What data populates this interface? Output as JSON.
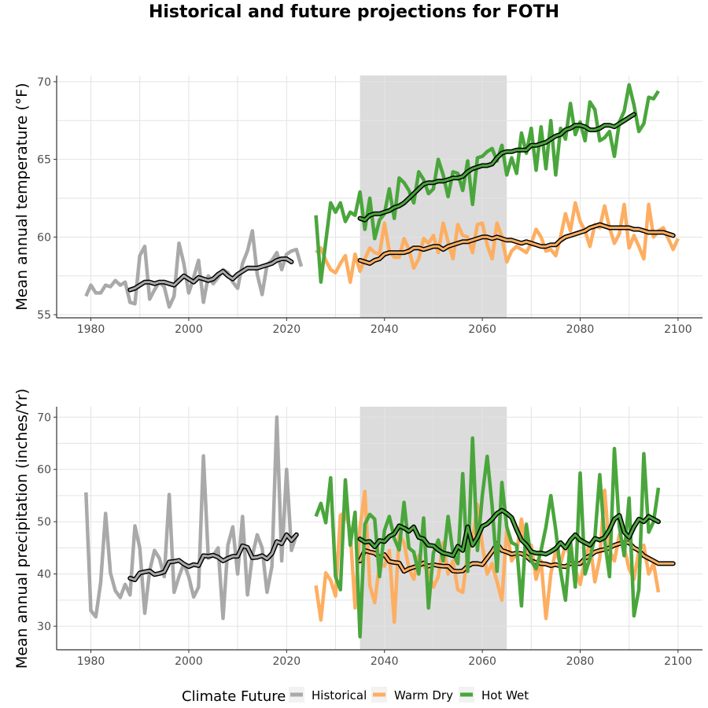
{
  "title": "Historical and future projections for FOTH",
  "colors": {
    "historical": "#a9a9a9",
    "warm_dry": "#fdae61",
    "hot_wet": "#4aa63c",
    "shade": "#dcdcdc",
    "smooth_outline": "#000000"
  },
  "legend": {
    "title": "Climate Future",
    "items": [
      {
        "label": "Historical",
        "color": "#a9a9a9"
      },
      {
        "label": "Warm Dry",
        "color": "#fdae61"
      },
      {
        "label": "Hot Wet",
        "color": "#4aa63c"
      }
    ],
    "position": "bottom"
  },
  "chart_data": [
    {
      "type": "line",
      "ylabel": "Mean annual temperature (°F)",
      "xlabel": "",
      "xlim": [
        1973,
        2105
      ],
      "ylim": [
        54.8,
        70.4
      ],
      "xticks": [
        1980,
        2000,
        2020,
        2040,
        2060,
        2080,
        2100
      ],
      "yticks": [
        55,
        60,
        65,
        70
      ],
      "grid": true,
      "shaded_period": [
        2035,
        2065
      ],
      "series": [
        {
          "name": "Historical",
          "color_key": "historical",
          "x_start": 1979,
          "values": [
            56.2,
            56.9,
            56.4,
            56.4,
            56.9,
            56.8,
            57.2,
            56.9,
            57.1,
            55.8,
            55.7,
            58.8,
            59.4,
            56.0,
            56.6,
            57.1,
            56.8,
            55.5,
            56.2,
            59.6,
            58.3,
            56.4,
            57.4,
            58.5,
            55.8,
            57.5,
            57.0,
            57.4,
            57.9,
            57.7,
            57.1,
            56.7,
            58.3,
            59.1,
            60.4,
            57.6,
            56.3,
            58.2,
            58.5,
            59.0,
            57.9,
            58.9,
            59.1,
            59.2,
            58.1
          ]
        },
        {
          "name": "Historical",
          "color_key": "historical",
          "smoothed": true,
          "x_start": 1988,
          "values": [
            56.6,
            56.7,
            56.9,
            57.1,
            57.1,
            57.0,
            57.1,
            57.1,
            57.0,
            56.9,
            57.2,
            57.5,
            57.3,
            57.1,
            57.4,
            57.3,
            57.2,
            57.3,
            57.6,
            57.8,
            57.5,
            57.3,
            57.6,
            57.8,
            58.0,
            58.0,
            58.0,
            58.1,
            58.2,
            58.3,
            58.5,
            58.6,
            58.6,
            58.4
          ]
        },
        {
          "name": "Warm Dry",
          "color_key": "warm_dry",
          "x_start": 2026,
          "values": [
            59.0,
            59.3,
            58.5,
            57.9,
            57.7,
            58.3,
            58.8,
            57.1,
            58.9,
            57.8,
            58.6,
            59.3,
            59.0,
            58.9,
            60.9,
            59.1,
            58.7,
            58.7,
            59.9,
            59.2,
            58.0,
            58.6,
            59.9,
            59.6,
            60.1,
            59.0,
            60.9,
            59.7,
            58.6,
            60.8,
            60.1,
            60.0,
            59.0,
            60.8,
            60.9,
            59.5,
            58.6,
            60.9,
            60.0,
            58.4,
            59.1,
            59.4,
            59.2,
            59.0,
            59.6,
            60.5,
            60.0,
            59.1,
            59.2,
            58.8,
            60.0,
            61.5,
            60.4,
            62.2,
            61.0,
            60.4,
            59.4,
            60.8,
            60.6,
            62.0,
            60.6,
            59.6,
            60.2,
            62.1,
            59.3,
            60.1,
            59.4,
            58.6,
            62.1,
            60.0,
            60.4,
            60.6,
            59.9,
            59.2,
            59.9
          ]
        },
        {
          "name": "Warm Dry",
          "color_key": "warm_dry",
          "smoothed": true,
          "x_start": 2035,
          "values": [
            58.5,
            58.4,
            58.3,
            58.5,
            58.6,
            58.9,
            59.0,
            59.0,
            59.0,
            59.0,
            59.1,
            59.3,
            59.3,
            59.2,
            59.3,
            59.4,
            59.4,
            59.2,
            59.4,
            59.5,
            59.6,
            59.7,
            59.7,
            59.8,
            59.9,
            60.0,
            60.0,
            59.9,
            60.0,
            59.9,
            59.8,
            59.8,
            59.7,
            59.6,
            59.7,
            59.6,
            59.5,
            59.4,
            59.4,
            59.5,
            59.5,
            59.8,
            60.0,
            60.1,
            60.2,
            60.3,
            60.4,
            60.6,
            60.7,
            60.8,
            60.7,
            60.6,
            60.6,
            60.6,
            60.6,
            60.6,
            60.5,
            60.5,
            60.4,
            60.3,
            60.3,
            60.3,
            60.3,
            60.2,
            60.1
          ]
        },
        {
          "name": "Hot Wet",
          "color_key": "hot_wet",
          "x_start": 2026,
          "values": [
            61.4,
            57.1,
            59.7,
            62.2,
            61.6,
            62.2,
            61.0,
            61.6,
            61.4,
            62.9,
            60.5,
            62.5,
            59.9,
            61.1,
            61.5,
            63.1,
            61.2,
            63.8,
            63.5,
            63.0,
            62.2,
            64.2,
            63.7,
            62.8,
            63.1,
            65.0,
            64.0,
            62.6,
            64.2,
            64.1,
            63.0,
            64.9,
            62.1,
            65.1,
            65.2,
            65.5,
            65.7,
            64.9,
            65.9,
            64.0,
            65.1,
            64.1,
            66.7,
            65.4,
            67.0,
            64.3,
            67.1,
            64.4,
            67.5,
            64.0,
            67.0,
            66.3,
            68.6,
            66.6,
            67.4,
            66.2,
            68.7,
            68.2,
            66.2,
            66.4,
            66.8,
            65.2,
            67.4,
            68.1,
            69.8,
            68.5,
            66.8,
            67.3,
            69.0,
            68.9,
            69.4
          ]
        },
        {
          "name": "Hot Wet",
          "color_key": "hot_wet",
          "smoothed": true,
          "x_start": 2035,
          "values": [
            61.2,
            61.1,
            61.4,
            61.5,
            61.5,
            61.6,
            61.7,
            61.9,
            62.0,
            62.2,
            62.5,
            62.8,
            63.1,
            63.4,
            63.5,
            63.5,
            63.6,
            63.6,
            63.7,
            63.8,
            63.8,
            63.9,
            64.2,
            64.4,
            64.5,
            64.6,
            64.6,
            64.7,
            65.1,
            65.4,
            65.5,
            65.5,
            65.6,
            65.6,
            65.6,
            65.9,
            65.9,
            66.0,
            66.1,
            66.3,
            66.5,
            66.6,
            66.9,
            67.0,
            67.2,
            67.2,
            67.1,
            66.9,
            66.9,
            67.0,
            67.2,
            67.2,
            67.1,
            67.3,
            67.5,
            67.7,
            67.9
          ]
        }
      ]
    },
    {
      "type": "line",
      "ylabel": "Mean annual precipitation (inches/Yr)",
      "xlabel": "",
      "xlim": [
        1973,
        2105
      ],
      "ylim": [
        25.5,
        72
      ],
      "xticks": [
        1980,
        2000,
        2020,
        2040,
        2060,
        2080,
        2100
      ],
      "yticks": [
        30,
        40,
        50,
        60,
        70
      ],
      "grid": true,
      "shaded_period": [
        2035,
        2065
      ],
      "series": [
        {
          "name": "Historical",
          "color_key": "historical",
          "x_start": 1979,
          "values": [
            55.6,
            33.0,
            31.8,
            38.4,
            51.6,
            40.2,
            36.8,
            35.5,
            38.0,
            36.0,
            49.2,
            45.0,
            32.5,
            40.6,
            44.5,
            43.0,
            39.5,
            55.2,
            36.5,
            39.5,
            42.0,
            39.5,
            35.6,
            37.5,
            62.6,
            43.0,
            43.5,
            45.0,
            31.5,
            45.5,
            49.0,
            40.0,
            51.0,
            36.0,
            43.5,
            47.5,
            45.0,
            36.5,
            41.5,
            70.0,
            42.5,
            60.0,
            44.5,
            47.5
          ]
        },
        {
          "name": "Historical",
          "color_key": "historical",
          "smoothed": true,
          "x_start": 1988,
          "values": [
            39.2,
            38.9,
            40.2,
            40.4,
            40.6,
            39.9,
            40.1,
            40.4,
            42.3,
            42.4,
            42.6,
            41.9,
            41.4,
            41.8,
            41.6,
            43.5,
            43.4,
            43.6,
            43.2,
            42.5,
            43.0,
            43.4,
            43.4,
            45.4,
            45.1,
            43.1,
            43.2,
            43.5,
            42.9,
            43.9,
            46.2,
            45.8,
            47.5,
            46.4,
            47.5
          ]
        },
        {
          "name": "Warm Dry",
          "color_key": "warm_dry",
          "x_start": 2026,
          "values": [
            37.8,
            31.2,
            40.2,
            38.8,
            35.8,
            51.2,
            51.8,
            48.2,
            33.5,
            48.8,
            55.8,
            37.8,
            34.5,
            42.0,
            41.5,
            44.5,
            30.8,
            47.5,
            46.0,
            41.0,
            39.0,
            43.5,
            41.5,
            40.5,
            37.5,
            39.5,
            46.0,
            40.0,
            42.5,
            37.0,
            36.5,
            44.0,
            46.5,
            53.3,
            45.5,
            40.0,
            42.0,
            38.5,
            35.0,
            48.5,
            42.5,
            44.0,
            50.5,
            44.0,
            45.5,
            39.0,
            42.5,
            31.5,
            40.0,
            44.5,
            42.0,
            45.5,
            43.5,
            41.0,
            38.0,
            43.0,
            46.0,
            38.5,
            43.0,
            56.0,
            44.5,
            42.5,
            47.5,
            45.0,
            41.0,
            39.0,
            44.5,
            45.5,
            40.0,
            42.0,
            36.5
          ]
        },
        {
          "name": "Warm Dry",
          "color_key": "warm_dry",
          "smoothed": true,
          "x_start": 2035,
          "values": [
            42.5,
            44.5,
            44.2,
            44.0,
            43.2,
            43.7,
            42.4,
            42.2,
            42.1,
            40.5,
            41.0,
            41.3,
            41.6,
            42.1,
            41.5,
            41.8,
            41.6,
            41.5,
            41.5,
            40.6,
            40.5,
            40.6,
            41.5,
            42.0,
            42.0,
            41.8,
            43.0,
            44.3,
            45.8,
            44.5,
            44.2,
            43.8,
            44.0,
            43.9,
            43.4,
            42.5,
            42.2,
            42.0,
            41.9,
            41.6,
            41.8,
            41.5,
            41.4,
            42.0,
            42.0,
            42.0,
            43.0,
            43.5,
            44.2,
            44.5,
            44.7,
            45.0,
            45.5,
            45.8,
            46.0,
            46.0,
            45.0,
            44.5,
            43.5,
            43.0,
            42.5,
            42.0,
            42.0,
            42.0,
            42.0
          ]
        },
        {
          "name": "Hot Wet",
          "color_key": "hot_wet",
          "x_start": 2026,
          "values": [
            51.0,
            53.5,
            49.8,
            58.4,
            39.5,
            37.0,
            58.0,
            45.5,
            51.8,
            28.0,
            49.5,
            51.4,
            50.5,
            39.5,
            48.3,
            51.0,
            46.8,
            44.6,
            53.7,
            45.0,
            44.2,
            40.0,
            50.7,
            33.5,
            44.0,
            46.5,
            42.5,
            51.0,
            44.0,
            42.0,
            59.2,
            40.5,
            66.0,
            44.5,
            55.0,
            62.5,
            53.0,
            40.5,
            57.5,
            49.0,
            46.0,
            45.5,
            33.9,
            49.5,
            42.5,
            41.0,
            44.5,
            49.0,
            55.0,
            48.5,
            40.5,
            35.0,
            46.5,
            37.5,
            59.3,
            40.0,
            43.0,
            47.0,
            59.0,
            46.5,
            39.5,
            64.0,
            49.0,
            43.5,
            54.5,
            32.0,
            37.0,
            63.0,
            48.0,
            50.0,
            56.5
          ]
        },
        {
          "name": "Hot Wet",
          "color_key": "hot_wet",
          "smoothed": true,
          "x_start": 2035,
          "values": [
            46.7,
            46.1,
            46.2,
            45.2,
            46.4,
            46.2,
            47.2,
            47.7,
            49.2,
            48.8,
            48.2,
            49.0,
            47.0,
            46.7,
            45.5,
            45.4,
            44.6,
            44.0,
            43.8,
            43.5,
            45.3,
            44.5,
            49.0,
            45.5,
            47.0,
            49.1,
            49.6,
            50.5,
            51.6,
            52.2,
            51.6,
            50.8,
            48.5,
            46.5,
            45.6,
            44.3,
            44.0,
            44.0,
            43.8,
            44.3,
            44.9,
            46.0,
            45.0,
            46.5,
            47.5,
            46.5,
            46.0,
            45.5,
            46.8,
            46.5,
            47.0,
            48.5,
            50.5,
            51.2,
            48.0,
            47.0,
            49.0,
            50.5,
            50.0,
            51.0,
            50.5,
            50.0
          ]
        }
      ]
    }
  ]
}
